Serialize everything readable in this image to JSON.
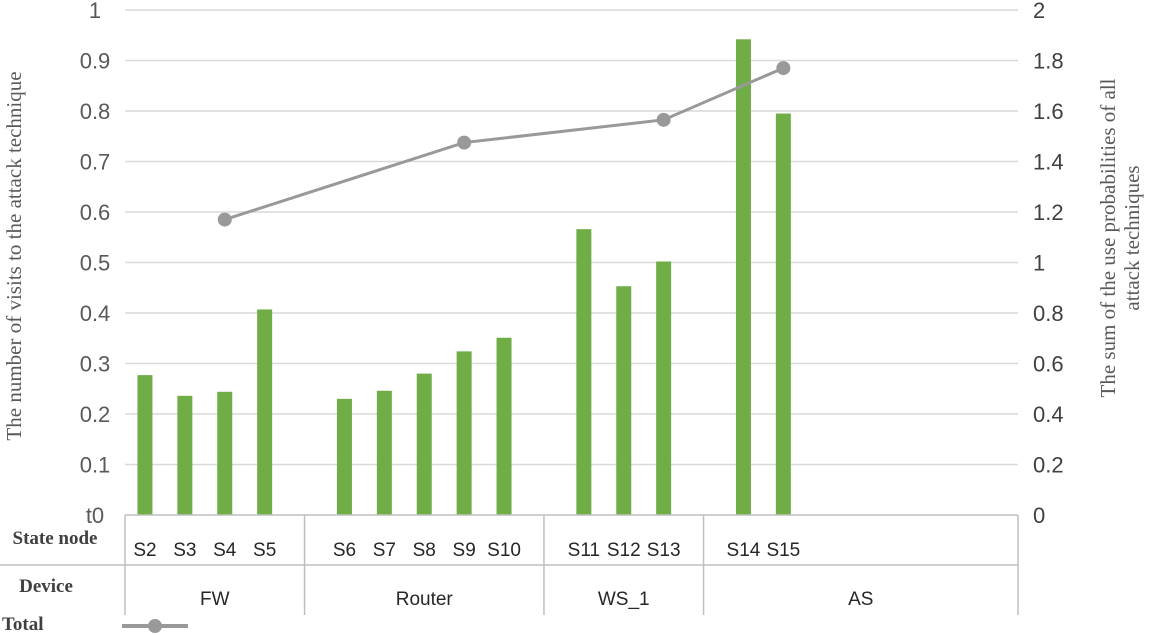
{
  "chart_data": {
    "type": "bar",
    "y_left_label": "The number of visits to the attack technique",
    "y_right_label": [
      "The sum of the use probabilities of all",
      "attack techniques"
    ],
    "y_left_ticks": [
      "t0",
      "0.1",
      "0.2",
      "0.3",
      "0.4",
      "0.5",
      "0.6",
      "0.7",
      "0.8",
      "0.9",
      "1"
    ],
    "y_right_ticks": [
      "0",
      "0.2",
      "0.4",
      "0.6",
      "0.8",
      "1",
      "1.2",
      "1.4",
      "1.6",
      "1.8",
      "2"
    ],
    "ylim_left": [
      0,
      1
    ],
    "ylim_right": [
      0,
      2
    ],
    "row_labels": {
      "state": "State node",
      "device": "Device"
    },
    "groups": [
      {
        "name": "FW",
        "categories": [
          "S2",
          "S3",
          "S4",
          "S5"
        ],
        "values": [
          0.277,
          0.236,
          0.244,
          0.407
        ]
      },
      {
        "name": "Router",
        "categories": [
          "S6",
          "S7",
          "S8",
          "S9",
          "S10"
        ],
        "values": [
          0.23,
          0.246,
          0.28,
          0.324,
          0.351
        ]
      },
      {
        "name": "WS_1",
        "categories": [
          "S11",
          "S12",
          "S13"
        ],
        "values": [
          0.566,
          0.453,
          0.502
        ]
      },
      {
        "name": "AS",
        "categories": [
          "S14",
          "S15"
        ],
        "values": [
          0.942,
          0.795
        ]
      }
    ],
    "line_series": {
      "name": "Total",
      "points": [
        {
          "group": "FW",
          "category": "S4",
          "value": 1.17
        },
        {
          "group": "Router",
          "category": "S9",
          "value": 1.475
        },
        {
          "group": "WS_1",
          "category": "S13",
          "value": 1.565
        },
        {
          "group": "AS",
          "category": "S15",
          "value": 1.77
        }
      ]
    },
    "colors": {
      "bar": "#70ad47",
      "line": "#999999",
      "grid": "#d9d9d9",
      "axis": "#bfbfbf"
    },
    "grid": true
  }
}
